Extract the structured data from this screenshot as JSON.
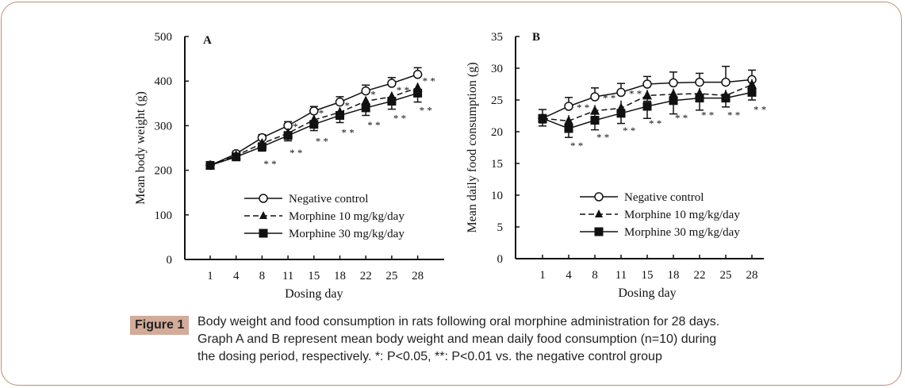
{
  "chart_data": [
    {
      "id": "A",
      "type": "line",
      "panel_label": "A",
      "xlabel": "Dosing day",
      "ylabel": "Mean body weight (g)",
      "ylim": [
        0,
        500
      ],
      "yticks": [
        0,
        100,
        200,
        300,
        400,
        500
      ],
      "x": [
        "1",
        "4",
        "8",
        "11",
        "15",
        "18",
        "22",
        "25",
        "28"
      ],
      "series": [
        {
          "name": "Negative control",
          "marker": "open-circle",
          "line": "solid",
          "values": [
            211,
            237,
            273,
            300,
            333,
            353,
            378,
            395,
            415
          ],
          "err": [
            4,
            6,
            7,
            9,
            10,
            12,
            13,
            13,
            15
          ]
        },
        {
          "name": "Morphine 10 mg/kg/day",
          "marker": "filled-triangle",
          "line": "dashed",
          "values": [
            211,
            233,
            260,
            283,
            313,
            330,
            355,
            365,
            385
          ],
          "err": [
            4,
            6,
            8,
            10,
            12,
            14,
            15,
            17,
            18
          ]
        },
        {
          "name": "Morphine 30 mg/kg/day",
          "marker": "filled-square",
          "line": "solid",
          "values": [
            211,
            230,
            253,
            278,
            303,
            323,
            340,
            355,
            373
          ],
          "err": [
            4,
            6,
            10,
            12,
            14,
            16,
            17,
            18,
            20
          ]
        }
      ],
      "annotations": [
        {
          "x": "8",
          "text": "**",
          "near": "Morphine 30 mg/kg/day"
        },
        {
          "x": "11",
          "text": "*",
          "near": "Morphine 10 mg/kg/day"
        },
        {
          "x": "11",
          "text": "**",
          "near": "Morphine 30 mg/kg/day"
        },
        {
          "x": "15",
          "text": "*",
          "near": "Morphine 10 mg/kg/day"
        },
        {
          "x": "15",
          "text": "**",
          "near": "Morphine 30 mg/kg/day"
        },
        {
          "x": "18",
          "text": "*",
          "near": "Morphine 10 mg/kg/day"
        },
        {
          "x": "18",
          "text": "**",
          "near": "Morphine 30 mg/kg/day"
        },
        {
          "x": "22",
          "text": "*",
          "near": "Morphine 10 mg/kg/day"
        },
        {
          "x": "22",
          "text": "**",
          "near": "Morphine 30 mg/kg/day"
        },
        {
          "x": "25",
          "text": "**",
          "near": "Morphine 10 mg/kg/day"
        },
        {
          "x": "25",
          "text": "**",
          "near": "Morphine 30 mg/kg/day"
        },
        {
          "x": "28",
          "text": "**",
          "near": "Morphine 10 mg/kg/day"
        },
        {
          "x": "28",
          "text": "**",
          "near": "Morphine 30 mg/kg/day"
        }
      ],
      "legend": "center-right",
      "grid": false
    },
    {
      "id": "B",
      "type": "line",
      "panel_label": "B",
      "xlabel": "Dosing day",
      "ylabel": "Mean daily food consumption (g)",
      "ylim": [
        0,
        35
      ],
      "yticks": [
        0,
        5,
        10,
        15,
        20,
        25,
        30,
        35
      ],
      "x": [
        "1",
        "4",
        "8",
        "11",
        "15",
        "18",
        "22",
        "25",
        "28"
      ],
      "series": [
        {
          "name": "Negative control",
          "marker": "open-circle",
          "line": "solid",
          "values": [
            22.1,
            24.0,
            25.5,
            26.2,
            27.5,
            27.7,
            27.8,
            27.8,
            28.2
          ],
          "err": [
            1.4,
            1.4,
            1.4,
            1.4,
            1.2,
            1.7,
            1.4,
            2.5,
            1.5
          ]
        },
        {
          "name": "Morphine 10 mg/kg/day",
          "marker": "filled-triangle",
          "line": "dashed",
          "values": [
            22.1,
            21.7,
            23.3,
            23.7,
            25.7,
            25.9,
            26.0,
            25.7,
            27.4
          ],
          "err": [
            1.2,
            1.5,
            1.5,
            2.0,
            1.5,
            1.5,
            1.5,
            1.5,
            1.5
          ]
        },
        {
          "name": "Morphine 30 mg/kg/day",
          "marker": "filled-square",
          "line": "solid",
          "values": [
            22.1,
            20.5,
            21.8,
            22.9,
            24.0,
            24.9,
            25.3,
            25.3,
            26.2
          ],
          "err": [
            1.2,
            1.4,
            1.5,
            1.6,
            1.9,
            2.1,
            1.9,
            1.4,
            1.2
          ]
        }
      ],
      "annotations": [
        {
          "x": "4",
          "text": "**",
          "near": "Negative control"
        },
        {
          "x": "4",
          "text": "**",
          "near": "Morphine 30 mg/kg/day"
        },
        {
          "x": "8",
          "text": "**",
          "near": "Negative control"
        },
        {
          "x": "8",
          "text": "**",
          "near": "Morphine 30 mg/kg/day"
        },
        {
          "x": "11",
          "text": "**",
          "near": "Negative control"
        },
        {
          "x": "11",
          "text": "**",
          "near": "Morphine 30 mg/kg/day"
        },
        {
          "x": "15",
          "text": "**",
          "near": "Morphine 30 mg/kg/day"
        },
        {
          "x": "18",
          "text": "**",
          "near": "Morphine 30 mg/kg/day"
        },
        {
          "x": "22",
          "text": "**",
          "near": "Morphine 30 mg/kg/day"
        },
        {
          "x": "25",
          "text": "**",
          "near": "Morphine 30 mg/kg/day"
        },
        {
          "x": "28",
          "text": "**",
          "near": "Morphine 30 mg/kg/day"
        }
      ],
      "legend": "center-right",
      "grid": false
    }
  ],
  "caption": {
    "label": "Figure 1",
    "lines": [
      "Body weight and food consumption in rats following oral morphine administration for 28 days.",
      "Graph A and B represent mean body weight and mean daily food consumption (n=10) during",
      "the dosing period, respectively. *: P<0.05, **: P<0.01 vs. the negative control group"
    ]
  },
  "colors": {
    "frame_border": "#c08d74",
    "figure_label_bg": "#d2ab9a",
    "ink": "#111111"
  }
}
